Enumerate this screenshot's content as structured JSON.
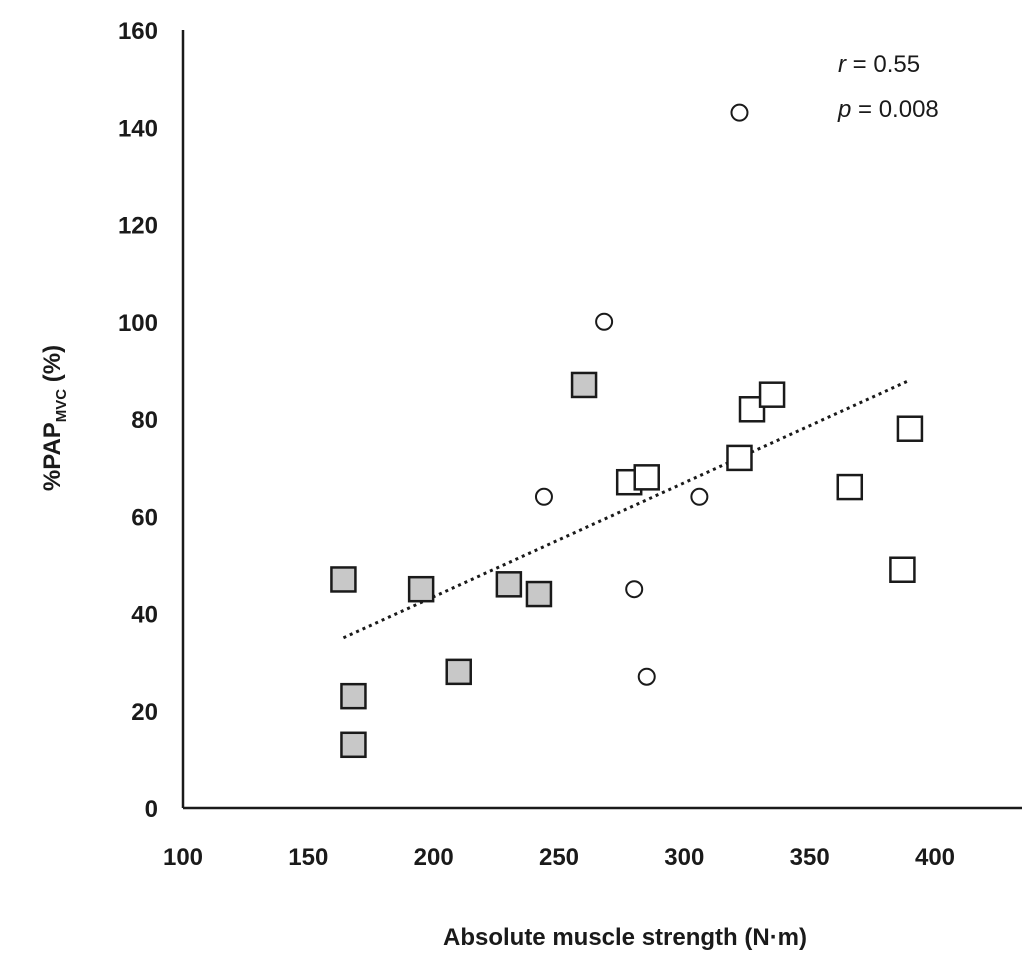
{
  "chart_data": {
    "type": "scatter",
    "title": "",
    "xlabel": "Absolute muscle strength (N·m)",
    "ylabel": {
      "prefix": "%PAP",
      "subscript": "MVC",
      "suffix": " (%)"
    },
    "xlim": [
      100,
      400
    ],
    "ylim": [
      0,
      160
    ],
    "x_ticks": [
      "100",
      "150",
      "200",
      "250",
      "300",
      "350",
      "400"
    ],
    "y_ticks": [
      "0",
      "20",
      "40",
      "60",
      "80",
      "100",
      "120",
      "140",
      "160"
    ],
    "grid": false,
    "legend": "none",
    "annotations": [
      {
        "var": "r",
        "text": " = 0.55"
      },
      {
        "var": "p",
        "text": " = 0.008"
      }
    ],
    "series": [
      {
        "marker": "square",
        "fill": "#c8c8c8",
        "points": [
          [
            164,
            47
          ],
          [
            168,
            23
          ],
          [
            168,
            13
          ],
          [
            195,
            45
          ],
          [
            210,
            28
          ],
          [
            230,
            46
          ],
          [
            242,
            44
          ],
          [
            260,
            87
          ]
        ]
      },
      {
        "marker": "square",
        "fill": "#ffffff",
        "points": [
          [
            278,
            67
          ],
          [
            285,
            68
          ],
          [
            322,
            72
          ],
          [
            327,
            82
          ],
          [
            335,
            85
          ],
          [
            366,
            66
          ],
          [
            387,
            49
          ],
          [
            390,
            78
          ]
        ]
      },
      {
        "marker": "circle",
        "fill": "#ffffff",
        "points": [
          [
            244,
            64
          ],
          [
            268,
            100
          ],
          [
            280,
            45
          ],
          [
            285,
            27
          ],
          [
            306,
            64
          ],
          [
            322,
            143
          ]
        ]
      }
    ],
    "trendline": {
      "style": "dotted",
      "from": [
        164,
        35
      ],
      "to": [
        390,
        88
      ]
    }
  }
}
